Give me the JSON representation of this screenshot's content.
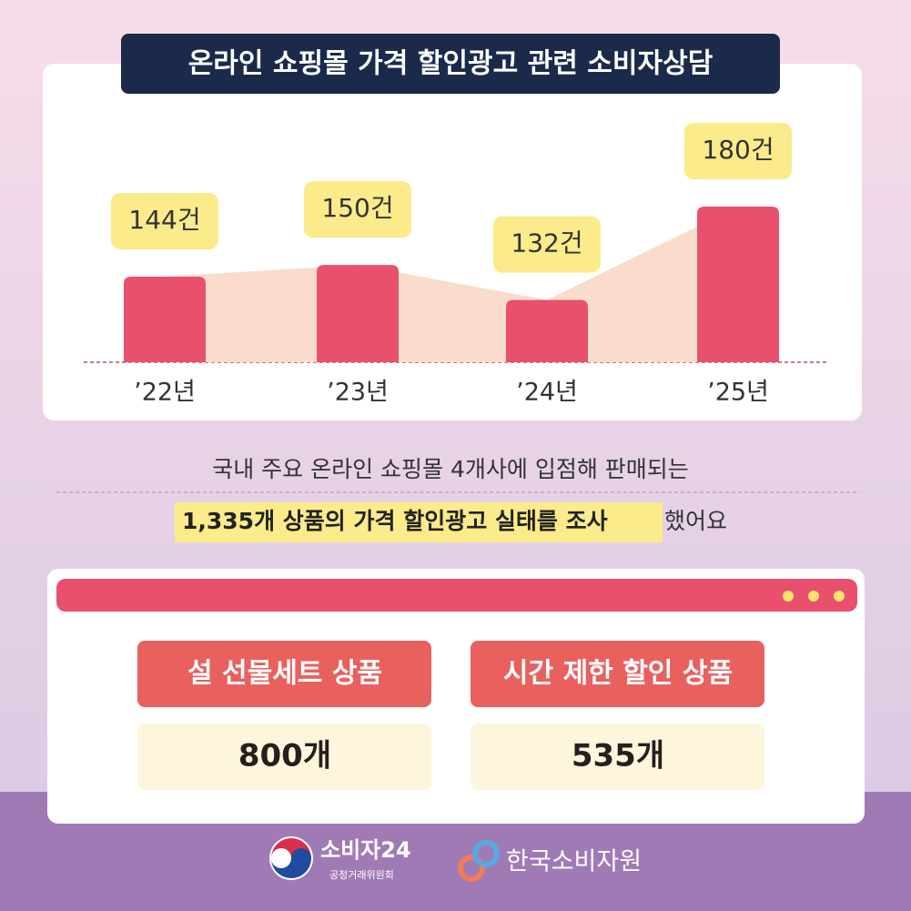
{
  "chart_data": {
    "type": "bar",
    "title": "온라인 쇼핑몰 가격 할인광고 관련 소비자상담",
    "categories": [
      "’22년",
      "’23년",
      "’24년",
      "’25년"
    ],
    "values": [
      144,
      150,
      132,
      180
    ],
    "value_labels": [
      "144건",
      "150건",
      "132건",
      "180건"
    ],
    "color": "#e8506e",
    "area_color": "#f9dccb",
    "label_color": "#fbeb8a",
    "ylim": [
      100,
      180
    ]
  },
  "description": {
    "line1": "국내 주요 온라인 쇼핑몰 4개사에 입점해 판매되는",
    "line2_highlight": "1,335개 상품의 가격 할인광고 실태를 조사",
    "line2_rest": "했어요"
  },
  "cards": [
    {
      "label": "설 선물세트 상품",
      "value": "800개"
    },
    {
      "label": "시간 제한 할인 상품",
      "value": "535개"
    }
  ],
  "footer": {
    "logo1": "소비자24",
    "logo1_sub": "공정거래위원회",
    "logo2": "한국소비자원"
  }
}
